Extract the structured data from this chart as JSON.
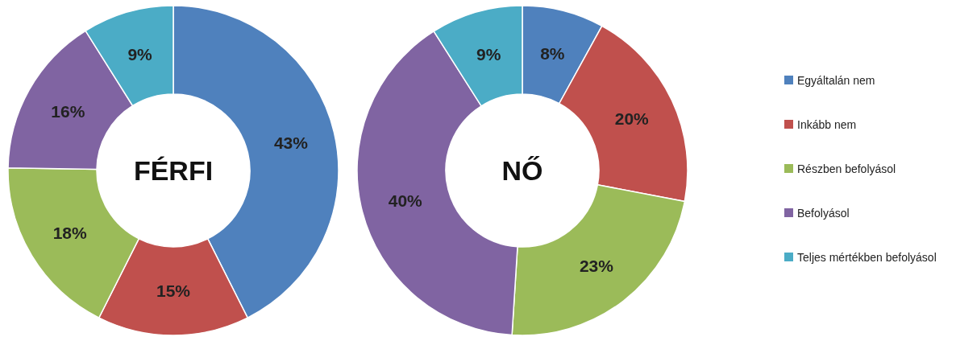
{
  "chart_data": [
    {
      "type": "donut",
      "title": "FÉRFI",
      "values": [
        43,
        15,
        18,
        16,
        9
      ],
      "value_labels": [
        "43%",
        "15%",
        "18%",
        "16%",
        "9%"
      ],
      "colors": [
        "#4f81bd",
        "#c0504d",
        "#9bbb59",
        "#8064a2",
        "#4bacc6"
      ],
      "legend": false
    },
    {
      "type": "donut",
      "title": "NŐ",
      "categories": [
        "Egyáltalán nem",
        "Inkább nem",
        "Részben befolyásol",
        "Befolyásol",
        "Teljes mértékben befolyásol"
      ],
      "values": [
        8,
        20,
        23,
        40,
        9
      ],
      "value_labels": [
        "8%",
        "20%",
        "23%",
        "40%",
        "9%"
      ],
      "colors": [
        "#4f81bd",
        "#c0504d",
        "#9bbb59",
        "#8064a2",
        "#4bacc6"
      ],
      "legend": "right"
    }
  ]
}
